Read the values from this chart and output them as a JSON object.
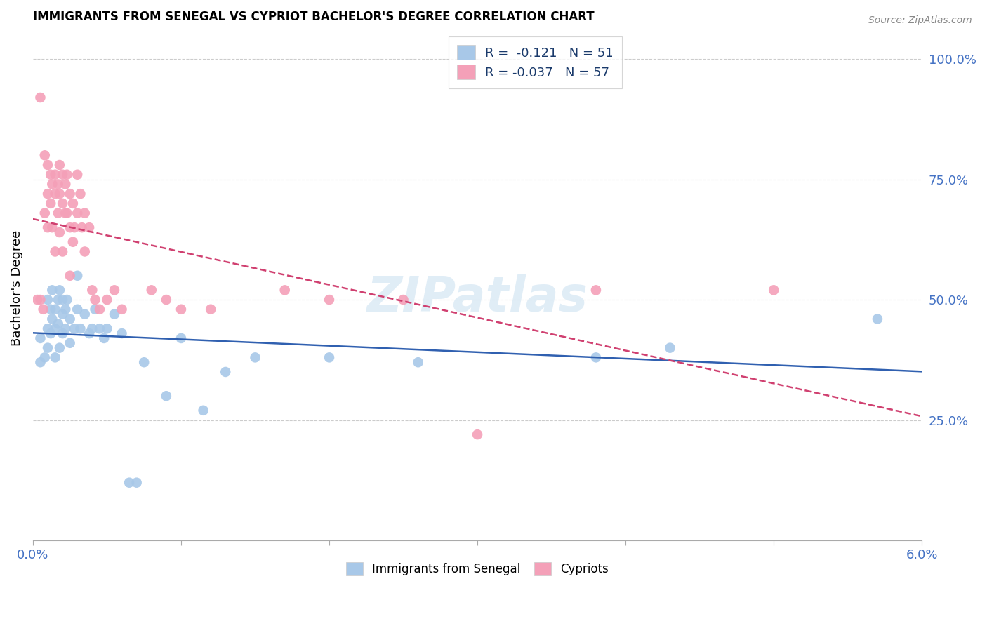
{
  "title": "IMMIGRANTS FROM SENEGAL VS CYPRIOT BACHELOR'S DEGREE CORRELATION CHART",
  "source": "Source: ZipAtlas.com",
  "ylabel": "Bachelor's Degree",
  "ylabel_right_ticks": [
    "100.0%",
    "75.0%",
    "50.0%",
    "25.0%"
  ],
  "ylabel_right_vals": [
    1.0,
    0.75,
    0.5,
    0.25
  ],
  "xlim": [
    0.0,
    0.06
  ],
  "ylim": [
    0.0,
    1.05
  ],
  "blue_color": "#a8c8e8",
  "pink_color": "#f4a0b8",
  "blue_line_color": "#3060b0",
  "pink_line_color": "#d04070",
  "watermark": "ZIPatlas",
  "senegal_x": [
    0.0005,
    0.0005,
    0.0008,
    0.001,
    0.001,
    0.001,
    0.0012,
    0.0012,
    0.0013,
    0.0013,
    0.0015,
    0.0015,
    0.0015,
    0.0017,
    0.0017,
    0.0018,
    0.0018,
    0.002,
    0.002,
    0.002,
    0.0022,
    0.0022,
    0.0023,
    0.0025,
    0.0025,
    0.0028,
    0.003,
    0.003,
    0.0032,
    0.0035,
    0.0038,
    0.004,
    0.0042,
    0.0045,
    0.0048,
    0.005,
    0.0055,
    0.006,
    0.0065,
    0.007,
    0.0075,
    0.009,
    0.01,
    0.0115,
    0.013,
    0.015,
    0.02,
    0.026,
    0.038,
    0.043,
    0.057
  ],
  "senegal_y": [
    0.37,
    0.42,
    0.38,
    0.5,
    0.44,
    0.4,
    0.48,
    0.43,
    0.46,
    0.52,
    0.48,
    0.44,
    0.38,
    0.5,
    0.45,
    0.4,
    0.52,
    0.5,
    0.47,
    0.43,
    0.48,
    0.44,
    0.5,
    0.46,
    0.41,
    0.44,
    0.55,
    0.48,
    0.44,
    0.47,
    0.43,
    0.44,
    0.48,
    0.44,
    0.42,
    0.44,
    0.47,
    0.43,
    0.12,
    0.12,
    0.37,
    0.3,
    0.42,
    0.27,
    0.35,
    0.38,
    0.38,
    0.37,
    0.38,
    0.4,
    0.46
  ],
  "cypriot_x": [
    0.0003,
    0.0005,
    0.0005,
    0.0007,
    0.0008,
    0.0008,
    0.001,
    0.001,
    0.001,
    0.0012,
    0.0012,
    0.0013,
    0.0013,
    0.0015,
    0.0015,
    0.0015,
    0.0017,
    0.0017,
    0.0018,
    0.0018,
    0.0018,
    0.002,
    0.002,
    0.002,
    0.0022,
    0.0022,
    0.0023,
    0.0023,
    0.0025,
    0.0025,
    0.0025,
    0.0027,
    0.0027,
    0.0028,
    0.003,
    0.003,
    0.0032,
    0.0033,
    0.0035,
    0.0035,
    0.0038,
    0.004,
    0.0042,
    0.0045,
    0.005,
    0.0055,
    0.006,
    0.008,
    0.009,
    0.01,
    0.012,
    0.017,
    0.02,
    0.025,
    0.03,
    0.038,
    0.05
  ],
  "cypriot_y": [
    0.5,
    0.92,
    0.5,
    0.48,
    0.8,
    0.68,
    0.78,
    0.72,
    0.65,
    0.76,
    0.7,
    0.74,
    0.65,
    0.76,
    0.72,
    0.6,
    0.74,
    0.68,
    0.78,
    0.72,
    0.64,
    0.76,
    0.7,
    0.6,
    0.74,
    0.68,
    0.76,
    0.68,
    0.72,
    0.65,
    0.55,
    0.7,
    0.62,
    0.65,
    0.76,
    0.68,
    0.72,
    0.65,
    0.68,
    0.6,
    0.65,
    0.52,
    0.5,
    0.48,
    0.5,
    0.52,
    0.48,
    0.52,
    0.5,
    0.48,
    0.48,
    0.52,
    0.5,
    0.5,
    0.22,
    0.52,
    0.52
  ]
}
